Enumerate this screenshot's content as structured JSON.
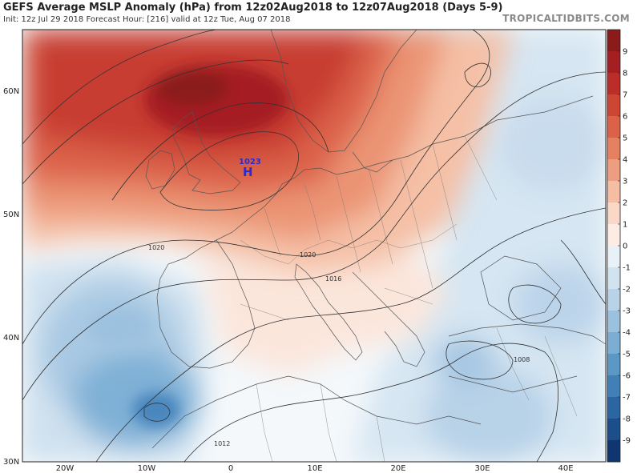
{
  "header": {
    "title": "GEFS Average MSLP Anomaly (hPa) from 12z02Aug2018 to 12z07Aug2018 (Days 5-9)",
    "subtitle": "Init: 12z Jul 29 2018   Forecast Hour: [216]   valid at 12z Tue, Aug 07 2018",
    "site": "TROPICALTIDBITS.COM"
  },
  "map": {
    "lat_labels": [
      "60N",
      "50N",
      "40N",
      "30N"
    ],
    "lon_labels": [
      "20W",
      "10W",
      "0",
      "10E",
      "20E",
      "30E",
      "40E"
    ],
    "high_center": {
      "label": "H",
      "value": "1023"
    },
    "isobar_labels": [
      "1020",
      "1020",
      "1016",
      "1008",
      "1012"
    ]
  },
  "colorbar": {
    "labels": [
      "9",
      "8",
      "7",
      "6",
      "5",
      "4",
      "3",
      "2",
      "1",
      "0",
      "-1",
      "-2",
      "-3",
      "-4",
      "-5",
      "-6",
      "-7",
      "-8",
      "-9"
    ],
    "colors": [
      "#8b1a1a",
      "#a51e22",
      "#bc2c28",
      "#cd4533",
      "#db6248",
      "#e58060",
      "#ee9d80",
      "#f5bda4",
      "#f9d8c8",
      "#fcece4",
      "#e9f1f8",
      "#d2e3f0",
      "#b8d3e8",
      "#9cc1df",
      "#7caed4",
      "#5c98c6",
      "#4080b7",
      "#2b66a2",
      "#1b4e8a",
      "#0f3670"
    ]
  }
}
